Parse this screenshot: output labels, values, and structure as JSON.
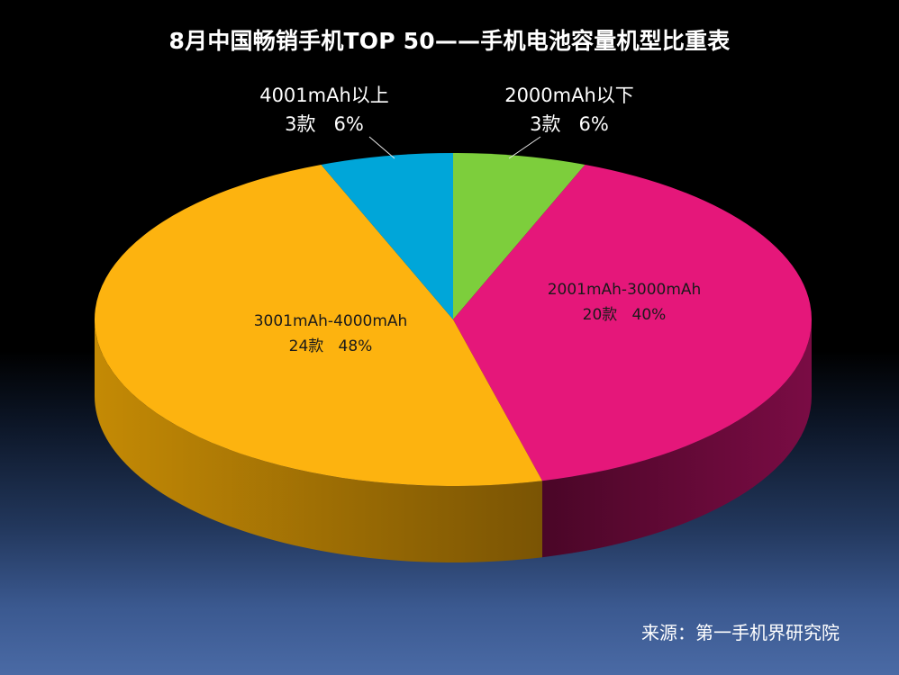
{
  "chart_data": {
    "type": "pie",
    "title": "8月中国畅销手机TOP 50——手机电池容量机型比重表",
    "slices": [
      {
        "label": "2000mAh以下",
        "count_label": "3款",
        "percent_label": "6%",
        "value": 6,
        "color": "#7dce3c",
        "side_color": "#3f6a1e"
      },
      {
        "label": "2001mAh-3000mAh",
        "count_label": "20款",
        "percent_label": "40%",
        "value": 40,
        "color": "#e5177a",
        "side_color": "#5e0a35"
      },
      {
        "label": "3001mAh-4000mAh",
        "count_label": "24款",
        "percent_label": "48%",
        "value": 48,
        "color": "#fdb30f",
        "side_color": "#a87406"
      },
      {
        "label": "4001mAh以上",
        "count_label": "3款",
        "percent_label": "6%",
        "value": 6,
        "color": "#00a6d9",
        "side_color": "#005f7d"
      }
    ],
    "legend": "none",
    "style": "3d"
  },
  "source": "来源：第一手机界研究院"
}
